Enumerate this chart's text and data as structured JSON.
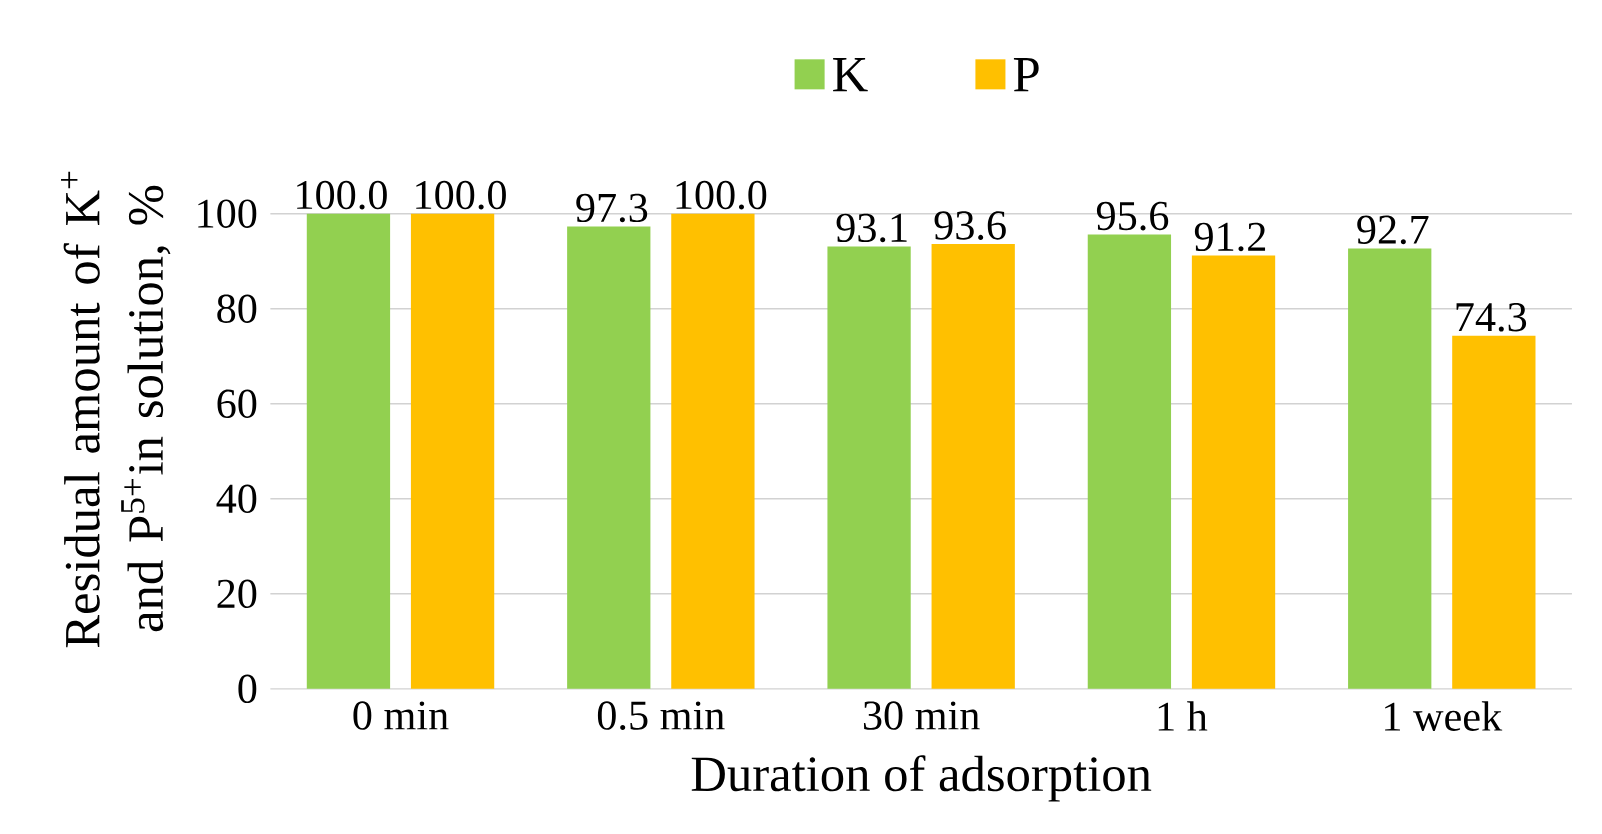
{
  "chart_data": {
    "type": "bar",
    "xlabel": "Duration of adsorption",
    "ylabel": "Residual amount of K$^{+}$ and P$^{5+}$in solution, %",
    "categories": [
      "0 min",
      "0.5 min",
      "30 min",
      "1 h",
      "1 week"
    ],
    "series": [
      {
        "name": "K",
        "color": "#92d050",
        "values": [
          100.0,
          97.3,
          93.1,
          95.6,
          92.7
        ],
        "value_labels": [
          "100.0",
          "97.3",
          "93.1",
          "95.6",
          "92.7"
        ]
      },
      {
        "name": "P",
        "color": "#ffc000",
        "values": [
          100.0,
          100.0,
          93.6,
          91.2,
          74.3
        ],
        "value_labels": [
          "100.0",
          "100.0",
          "93.6",
          "91.2",
          "74.3"
        ]
      }
    ],
    "ylim": [
      0,
      100
    ],
    "yticks": [
      0,
      20,
      40,
      60,
      80,
      100
    ],
    "grid": "y",
    "legend": "top"
  }
}
